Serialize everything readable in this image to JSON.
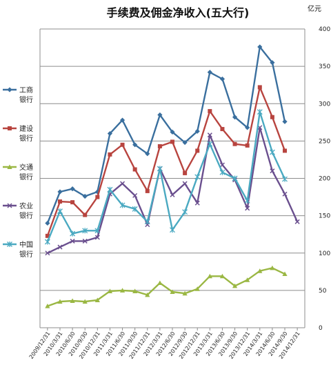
{
  "chart_data": {
    "type": "line",
    "title": "手续费及佣金净收入(五大行)",
    "unit": "亿元",
    "ylim": [
      0,
      400
    ],
    "yticks": [
      0,
      50,
      100,
      150,
      200,
      250,
      300,
      350,
      400
    ],
    "grid": true,
    "legend_position": "left",
    "categories": [
      "2009/12/31",
      "2010/3/31",
      "2010/6/30",
      "2010/9/30",
      "2010/12/31",
      "2011/3/31",
      "2011/6/30",
      "2011/9/30",
      "2011/12/31",
      "2012/3/31",
      "2012/6/30",
      "2012/9/30",
      "2012/12/31",
      "2013/3/31",
      "2013/6/30",
      "2013/9/30",
      "2013/12/31",
      "2014/3/31",
      "2014/6/30",
      "2014/9/30",
      "2014/12/31"
    ],
    "series": [
      {
        "name": "工商银行",
        "color": "#3a6f9e",
        "marker": "diamond",
        "values": [
          140,
          182,
          186,
          176,
          182,
          260,
          278,
          245,
          233,
          285,
          262,
          248,
          263,
          342,
          333,
          282,
          268,
          376,
          355,
          276,
          null
        ]
      },
      {
        "name": "建设银行",
        "color": "#b8443f",
        "marker": "square",
        "values": [
          123,
          169,
          168,
          151,
          175,
          232,
          245,
          212,
          183,
          243,
          249,
          207,
          237,
          290,
          266,
          246,
          244,
          322,
          282,
          237,
          null
        ]
      },
      {
        "name": "交通银行",
        "color": "#9ab743",
        "marker": "triangle",
        "values": [
          29,
          35,
          36,
          35,
          37,
          49,
          50,
          49,
          44,
          60,
          48,
          46,
          52,
          69,
          69,
          56,
          64,
          76,
          80,
          72,
          null
        ]
      },
      {
        "name": "农业银行",
        "color": "#6a4f8e",
        "marker": "x",
        "values": [
          100,
          108,
          116,
          116,
          121,
          179,
          193,
          177,
          138,
          213,
          178,
          193,
          167,
          258,
          218,
          198,
          160,
          268,
          210,
          179,
          142
        ]
      },
      {
        "name": "中国银行",
        "color": "#4aa9c1",
        "marker": "star",
        "values": [
          115,
          156,
          126,
          130,
          130,
          185,
          164,
          159,
          142,
          213,
          131,
          155,
          202,
          246,
          208,
          200,
          170,
          289,
          235,
          199,
          null
        ]
      }
    ]
  }
}
